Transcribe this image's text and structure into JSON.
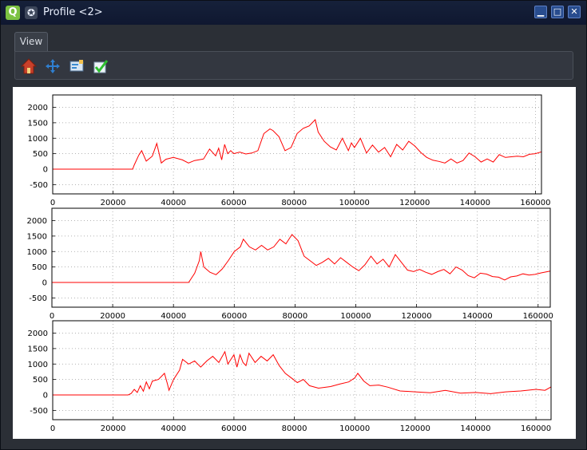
{
  "window": {
    "title": "Profile <2>"
  },
  "tabs": [
    {
      "label": "View"
    }
  ],
  "toolbar": {
    "tools": [
      {
        "name": "home-icon"
      },
      {
        "name": "pan-icon"
      },
      {
        "name": "configure-subplots-icon"
      },
      {
        "name": "save-check-icon"
      }
    ]
  },
  "colors": {
    "series": "#ff0000",
    "titlebar": "#16213a",
    "canvas": "#ffffff"
  },
  "chart_data": [
    {
      "type": "line",
      "xlim": [
        0,
        162000
      ],
      "ylim": [
        -800,
        2400
      ],
      "x_ticks": [
        "0",
        "20000",
        "40000",
        "60000",
        "80000",
        "100000",
        "120000",
        "140000",
        "160000"
      ],
      "y_ticks": [
        "-500",
        "0",
        "500",
        "1000",
        "1500",
        "2000"
      ],
      "grid": true,
      "series": [
        {
          "x": [
            0,
            26500,
            27000,
            28500,
            29500,
            31000,
            33000,
            34500,
            36000,
            37500,
            40000,
            43000,
            45000,
            47000,
            50000,
            52000,
            54000,
            55000,
            56000,
            57000,
            58000,
            59000,
            60000,
            62000,
            64000,
            66000,
            68000,
            70000,
            72000,
            73000,
            75000,
            77000,
            79000,
            81000,
            83000,
            85000,
            87000,
            88000,
            90000,
            92000,
            94000,
            96000,
            98000,
            99000,
            100000,
            102000,
            104000,
            106000,
            108000,
            110000,
            112000,
            114000,
            116000,
            118000,
            120000,
            122000,
            124000,
            126000,
            128000,
            130000,
            132000,
            134000,
            136000,
            138000,
            140000,
            142000,
            144000,
            146000,
            148000,
            150000,
            152000,
            154000,
            156000,
            158000,
            160000,
            162000
          ],
          "y": [
            0,
            0,
            130,
            450,
            600,
            260,
            420,
            830,
            200,
            320,
            380,
            300,
            200,
            280,
            330,
            650,
            430,
            680,
            300,
            800,
            500,
            600,
            500,
            550,
            490,
            520,
            600,
            1150,
            1300,
            1250,
            1050,
            600,
            700,
            1150,
            1320,
            1400,
            1600,
            1200,
            900,
            720,
            620,
            1000,
            600,
            850,
            700,
            1000,
            520,
            780,
            550,
            700,
            400,
            800,
            620,
            900,
            750,
            540,
            380,
            290,
            250,
            200,
            330,
            200,
            280,
            520,
            400,
            230,
            330,
            230,
            470,
            380,
            400,
            420,
            400,
            480,
            500,
            560
          ]
        }
      ]
    },
    {
      "type": "line",
      "xlim": [
        0,
        164000
      ],
      "ylim": [
        -800,
        2400
      ],
      "x_ticks": [
        "0",
        "20000",
        "40000",
        "60000",
        "80000",
        "100000",
        "120000",
        "140000",
        "160000"
      ],
      "y_ticks": [
        "-500",
        "0",
        "500",
        "1000",
        "1500",
        "2000"
      ],
      "grid": true,
      "series": [
        {
          "x": [
            0,
            45000,
            47000,
            48500,
            49000,
            50000,
            52000,
            54000,
            56000,
            58000,
            60000,
            62000,
            63000,
            65000,
            67000,
            69000,
            71000,
            73000,
            75000,
            77000,
            79000,
            81000,
            83000,
            85000,
            87000,
            89000,
            91000,
            93000,
            95000,
            97000,
            99000,
            101000,
            103000,
            105000,
            107000,
            109000,
            111000,
            113000,
            115000,
            117000,
            119000,
            121000,
            123000,
            125000,
            127000,
            129000,
            131000,
            133000,
            135000,
            137000,
            139000,
            141000,
            143000,
            145000,
            147000,
            149000,
            151000,
            153000,
            155000,
            157000,
            159000,
            161000,
            164000
          ],
          "y": [
            0,
            0,
            300,
            700,
            1000,
            500,
            330,
            250,
            430,
            700,
            1000,
            1150,
            1400,
            1150,
            1050,
            1200,
            1050,
            1150,
            1400,
            1250,
            1550,
            1350,
            850,
            700,
            550,
            650,
            780,
            600,
            800,
            650,
            500,
            380,
            570,
            850,
            600,
            750,
            500,
            900,
            650,
            400,
            350,
            420,
            330,
            260,
            350,
            420,
            280,
            500,
            400,
            220,
            150,
            300,
            270,
            190,
            170,
            80,
            180,
            210,
            280,
            240,
            260,
            310,
            370
          ]
        }
      ]
    },
    {
      "type": "line",
      "xlim": [
        0,
        165000
      ],
      "ylim": [
        -800,
        2400
      ],
      "x_ticks": [
        "0",
        "20000",
        "40000",
        "60000",
        "80000",
        "100000",
        "120000",
        "140000",
        "160000"
      ],
      "y_ticks": [
        "-500",
        "0",
        "500",
        "1000",
        "1500",
        "2000"
      ],
      "grid": true,
      "series": [
        {
          "x": [
            0,
            25000,
            26000,
            27000,
            28000,
            29000,
            30000,
            31000,
            32000,
            33000,
            35000,
            37000,
            38000,
            38500,
            40000,
            42000,
            43000,
            45000,
            47000,
            49000,
            51000,
            53000,
            55000,
            57000,
            58000,
            60000,
            61000,
            62000,
            63000,
            64000,
            65000,
            67000,
            69000,
            71000,
            73000,
            75000,
            77000,
            79000,
            81000,
            83000,
            85000,
            88000,
            92000,
            95000,
            98000,
            100000,
            101000,
            103000,
            105000,
            108000,
            111000,
            115000,
            120000,
            125000,
            130000,
            135000,
            140000,
            145000,
            150000,
            155000,
            160000,
            163000,
            165000
          ],
          "y": [
            0,
            0,
            50,
            180,
            80,
            300,
            120,
            420,
            200,
            450,
            500,
            700,
            350,
            150,
            500,
            800,
            1150,
            1000,
            1100,
            900,
            1100,
            1250,
            1050,
            1400,
            1000,
            1300,
            900,
            1300,
            1050,
            950,
            1350,
            1050,
            1250,
            1100,
            1300,
            950,
            700,
            550,
            400,
            500,
            300,
            220,
            270,
            350,
            420,
            550,
            700,
            450,
            300,
            320,
            250,
            130,
            100,
            70,
            150,
            60,
            80,
            40,
            100,
            130,
            180,
            150,
            260
          ]
        }
      ]
    }
  ]
}
